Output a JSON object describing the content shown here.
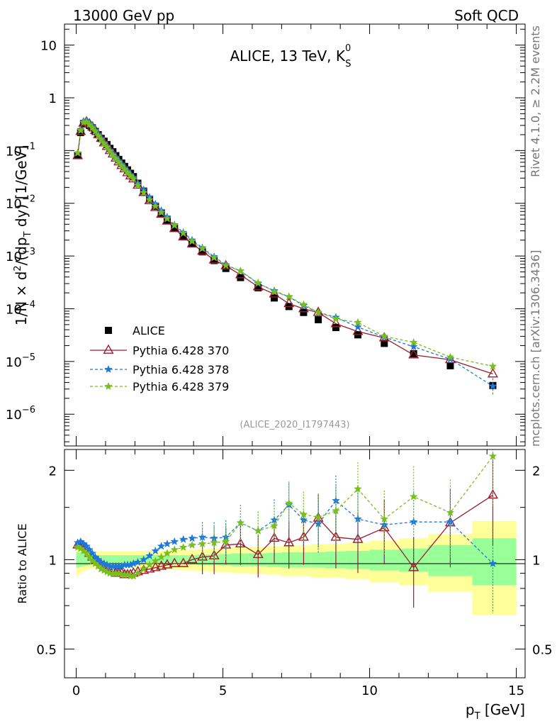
{
  "header": {
    "left": "13000 GeV pp",
    "right": "Soft QCD"
  },
  "side": {
    "rivet": "Rivet 4.1.0, ≥ 2.2M events",
    "site": "mcplots.cern.ch [arXiv:1306.3436]"
  },
  "colors": {
    "data": "#000000",
    "p370": "#9b1b30",
    "p378": "#1e78dc",
    "p379": "#78be1e",
    "band_inner": "#99ff99",
    "band_outer": "#ffff99"
  },
  "chart_data": [
    {
      "type": "scatter",
      "title": "ALICE, 13 TeV, K",
      "title_sup": "0",
      "title_sub": "S",
      "watermark": "(ALICE_2020_I1797443)",
      "ylabel": "1/N × d²/(dp_T dy) [1/GeV]",
      "yscale": "log",
      "ylim": [
        2.5e-07,
        25
      ],
      "xlim": [
        -0.4,
        15.3
      ],
      "yticks": [
        {
          "v": 10,
          "m": "10",
          "e": ""
        },
        {
          "v": 1,
          "m": "1",
          "e": ""
        },
        {
          "v": 0.1,
          "m": "10",
          "e": "−1"
        },
        {
          "v": 0.01,
          "m": "10",
          "e": "−2"
        },
        {
          "v": 0.001,
          "m": "10",
          "e": "−3"
        },
        {
          "v": 0.0001,
          "m": "10",
          "e": "−4"
        },
        {
          "v": 1e-05,
          "m": "10",
          "e": "−5"
        },
        {
          "v": 1e-06,
          "m": "10",
          "e": "−6"
        }
      ],
      "legend": [
        "ALICE",
        "Pythia 6.428 370",
        "Pythia 6.428 378",
        "Pythia 6.428 379"
      ],
      "x": [
        0.05,
        0.15,
        0.25,
        0.35,
        0.45,
        0.55,
        0.65,
        0.75,
        0.85,
        0.95,
        1.05,
        1.15,
        1.25,
        1.35,
        1.45,
        1.55,
        1.65,
        1.75,
        1.85,
        1.95,
        2.1,
        2.3,
        2.5,
        2.7,
        2.9,
        3.1,
        3.35,
        3.65,
        3.95,
        4.3,
        4.7,
        5.1,
        5.6,
        6.2,
        6.75,
        7.25,
        7.75,
        8.25,
        8.85,
        9.6,
        10.5,
        11.5,
        12.75,
        14.2
      ],
      "series": [
        {
          "name": "ALICE",
          "values": [
            0.08,
            0.22,
            0.32,
            0.33,
            0.3,
            0.27,
            0.23,
            0.2,
            0.17,
            0.15,
            0.13,
            0.11,
            0.095,
            0.08,
            0.068,
            0.058,
            0.05,
            0.043,
            0.037,
            0.032,
            0.024,
            0.017,
            0.012,
            0.0088,
            0.0065,
            0.0048,
            0.0034,
            0.0024,
            0.0017,
            0.0012,
            0.00082,
            0.00058,
            0.00039,
            0.00025,
            0.00016,
            0.00011,
            8.5e-05,
            6.2e-05,
            4.4e-05,
            3.2e-05,
            2.2e-05,
            1.4e-05,
            8.3e-06,
            3.5e-06
          ]
        },
        {
          "name": "Pythia 6.428 370",
          "values": [
            0.08,
            0.23,
            0.33,
            0.35,
            0.32,
            0.28,
            0.24,
            0.2,
            0.17,
            0.14,
            0.12,
            0.1,
            0.086,
            0.072,
            0.061,
            0.052,
            0.045,
            0.038,
            0.033,
            0.029,
            0.022,
            0.016,
            0.0112,
            0.0083,
            0.0062,
            0.0046,
            0.0033,
            0.0023,
            0.0017,
            0.00123,
            0.00084,
            0.00065,
            0.00044,
            0.00026,
            0.00019,
            0.000125,
            0.0001,
            8.5e-05,
            5.2e-05,
            3.7e-05,
            2.8e-05,
            1.33e-05,
            1.08e-05,
            5.8e-06
          ]
        },
        {
          "name": "Pythia 6.428 378",
          "values": [
            0.09,
            0.25,
            0.36,
            0.37,
            0.33,
            0.29,
            0.24,
            0.2,
            0.17,
            0.14,
            0.12,
            0.1,
            0.087,
            0.074,
            0.063,
            0.055,
            0.047,
            0.041,
            0.035,
            0.031,
            0.024,
            0.018,
            0.013,
            0.0097,
            0.0073,
            0.0055,
            0.0039,
            0.0028,
            0.002,
            0.00143,
            0.00097,
            0.00068,
            0.00052,
            0.0003,
            0.00022,
            0.000168,
            0.000115,
            8.5e-05,
            6.9e-05,
            4.5e-05,
            2.9e-05,
            1.9e-05,
            1.11e-05,
            3.4e-06
          ]
        },
        {
          "name": "Pythia 6.428 379",
          "values": [
            0.09,
            0.24,
            0.34,
            0.35,
            0.31,
            0.27,
            0.23,
            0.19,
            0.16,
            0.135,
            0.115,
            0.097,
            0.082,
            0.07,
            0.06,
            0.051,
            0.044,
            0.038,
            0.033,
            0.029,
            0.022,
            0.016,
            0.0117,
            0.0088,
            0.0067,
            0.0051,
            0.0038,
            0.0027,
            0.0019,
            0.00138,
            0.00093,
            0.00066,
            0.00052,
            0.00031,
            0.00021,
            0.00017,
            0.00012,
            8.6e-05,
            6.4e-05,
            5.5e-05,
            3e-05,
            2.3e-05,
            1.21e-05,
            8.1e-06
          ]
        }
      ]
    },
    {
      "type": "line",
      "ylabel": "Ratio to ALICE",
      "xlabel": "p_T [GeV]",
      "yscale": "log",
      "ylim": [
        0.4,
        2.35
      ],
      "xlim": [
        -0.4,
        15.3
      ],
      "xticks": [
        0,
        5,
        10,
        15
      ],
      "yticks": [
        {
          "v": 0.5,
          "label": "0.5"
        },
        {
          "v": 1,
          "label": "1"
        },
        {
          "v": 2,
          "label": "2"
        }
      ],
      "x": [
        0.05,
        0.15,
        0.25,
        0.35,
        0.45,
        0.55,
        0.65,
        0.75,
        0.85,
        0.95,
        1.05,
        1.15,
        1.25,
        1.35,
        1.45,
        1.55,
        1.65,
        1.75,
        1.85,
        1.95,
        2.1,
        2.3,
        2.5,
        2.7,
        2.9,
        3.1,
        3.35,
        3.65,
        3.95,
        4.3,
        4.7,
        5.1,
        5.6,
        6.2,
        6.75,
        7.25,
        7.75,
        8.25,
        8.85,
        9.6,
        10.5,
        11.5,
        12.75,
        14.2
      ],
      "bins": [
        0,
        0.1,
        0.2,
        0.3,
        0.4,
        0.5,
        0.6,
        0.7,
        0.8,
        0.9,
        1.0,
        1.1,
        1.2,
        1.3,
        1.4,
        1.5,
        1.6,
        1.7,
        1.8,
        1.9,
        2.0,
        2.2,
        2.4,
        2.6,
        2.8,
        3.0,
        3.2,
        3.5,
        3.8,
        4.1,
        4.5,
        4.9,
        5.3,
        5.9,
        6.5,
        7.0,
        7.5,
        8.0,
        8.5,
        9.2,
        10.0,
        11.0,
        12.0,
        13.5,
        15.0
      ],
      "band_inner": [
        0.06,
        0.055,
        0.05,
        0.045,
        0.04,
        0.035,
        0.035,
        0.035,
        0.035,
        0.035,
        0.035,
        0.035,
        0.035,
        0.035,
        0.035,
        0.035,
        0.035,
        0.035,
        0.035,
        0.035,
        0.035,
        0.035,
        0.035,
        0.035,
        0.035,
        0.035,
        0.035,
        0.035,
        0.035,
        0.04,
        0.04,
        0.045,
        0.05,
        0.05,
        0.055,
        0.06,
        0.06,
        0.06,
        0.065,
        0.07,
        0.08,
        0.09,
        0.12,
        0.18
      ],
      "band_outer": [
        0.12,
        0.1,
        0.09,
        0.08,
        0.07,
        0.065,
        0.065,
        0.065,
        0.065,
        0.065,
        0.065,
        0.065,
        0.065,
        0.065,
        0.065,
        0.065,
        0.065,
        0.065,
        0.065,
        0.065,
        0.07,
        0.07,
        0.07,
        0.07,
        0.07,
        0.075,
        0.075,
        0.08,
        0.08,
        0.085,
        0.09,
        0.095,
        0.1,
        0.105,
        0.11,
        0.12,
        0.12,
        0.13,
        0.13,
        0.14,
        0.16,
        0.18,
        0.22,
        0.35
      ],
      "series": [
        {
          "name": "Pythia 6.428 370",
          "values": [
            1.12,
            1.13,
            1.11,
            1.08,
            1.05,
            1.02,
            1.0,
            0.98,
            0.96,
            0.94,
            0.93,
            0.92,
            0.91,
            0.9,
            0.9,
            0.9,
            0.89,
            0.89,
            0.89,
            0.9,
            0.91,
            0.92,
            0.93,
            0.94,
            0.95,
            0.96,
            0.97,
            0.97,
            1.0,
            1.02,
            1.03,
            1.12,
            1.13,
            1.04,
            1.18,
            1.14,
            1.19,
            1.38,
            1.19,
            1.17,
            1.28,
            0.94,
            1.33,
            1.65
          ]
        },
        {
          "name": "Pythia 6.428 378",
          "values": [
            1.14,
            1.15,
            1.13,
            1.11,
            1.08,
            1.05,
            1.02,
            1.0,
            0.98,
            0.97,
            0.96,
            0.95,
            0.95,
            0.95,
            0.95,
            0.95,
            0.96,
            0.96,
            0.96,
            0.97,
            0.98,
            1.0,
            1.03,
            1.07,
            1.11,
            1.13,
            1.15,
            1.17,
            1.18,
            1.19,
            1.18,
            1.19,
            1.33,
            1.25,
            1.36,
            1.53,
            1.36,
            1.32,
            1.58,
            1.37,
            1.31,
            1.34,
            1.34,
            0.97
          ]
        },
        {
          "name": "Pythia 6.428 379",
          "values": [
            1.1,
            1.09,
            1.07,
            1.05,
            1.02,
            0.99,
            0.97,
            0.95,
            0.93,
            0.92,
            0.91,
            0.9,
            0.9,
            0.9,
            0.9,
            0.89,
            0.89,
            0.89,
            0.88,
            0.88,
            0.9,
            0.93,
            0.96,
            0.99,
            1.02,
            1.05,
            1.08,
            1.1,
            1.12,
            1.13,
            1.14,
            1.15,
            1.33,
            1.25,
            1.3,
            1.55,
            1.42,
            1.39,
            1.46,
            1.73,
            1.37,
            1.63,
            1.44,
            2.23
          ]
        }
      ]
    }
  ]
}
